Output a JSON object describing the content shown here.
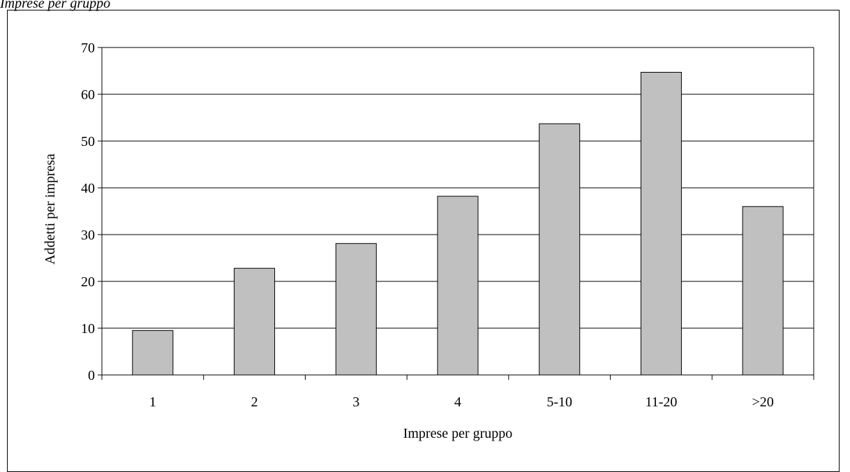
{
  "header": {
    "caption": "Imprese per gruppo"
  },
  "chart_data": {
    "type": "bar",
    "categories": [
      "1",
      "2",
      "3",
      "4",
      "5-10",
      "11-20",
      ">20"
    ],
    "values": [
      9.5,
      22.8,
      28.1,
      38.2,
      53.7,
      64.7,
      36.0
    ],
    "xlabel": "Imprese per gruppo",
    "ylabel": "Addetti per impresa",
    "ylim": [
      0,
      70
    ],
    "yticks": [
      0,
      10,
      20,
      30,
      40,
      50,
      60,
      70
    ],
    "grid": true,
    "bar_color": "#c0c0c0",
    "bar_edge_color": "#000000",
    "legend": "none"
  }
}
